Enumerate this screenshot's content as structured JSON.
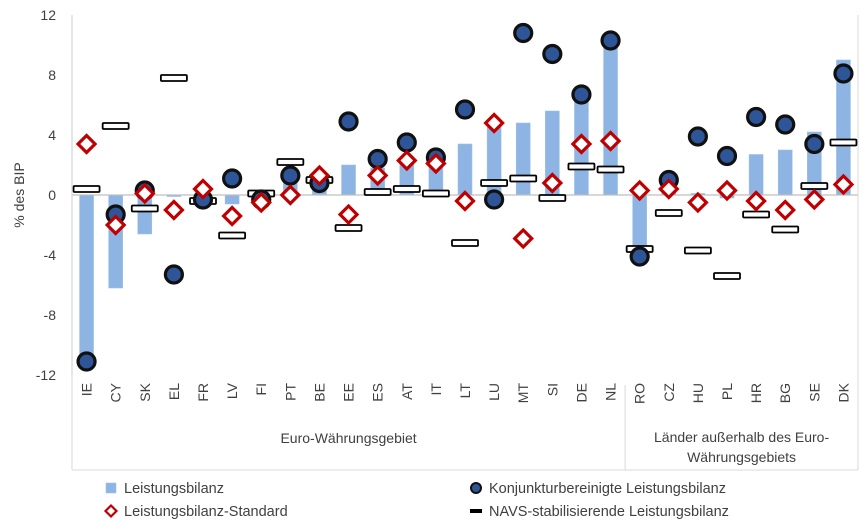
{
  "chart_data": {
    "type": "bar",
    "ylabel": "% des BIP",
    "ylim": [
      -12,
      12
    ],
    "yticks": [
      12,
      8,
      4,
      0,
      -4,
      -8,
      -12
    ],
    "categories": [
      "IE",
      "CY",
      "SK",
      "EL",
      "FR",
      "LV",
      "FI",
      "PT",
      "BE",
      "EE",
      "ES",
      "AT",
      "IT",
      "LT",
      "LU",
      "MT",
      "SI",
      "DE",
      "NL",
      "RO",
      "CZ",
      "HU",
      "PL",
      "HR",
      "BG",
      "SE",
      "DK"
    ],
    "groups": [
      {
        "label": "Euro-Währungsgebiet",
        "start": 0,
        "end": 18
      },
      {
        "label": "Länder außerhalb des Euro-Währungsgebiets",
        "label_lines": [
          "Länder außerhalb des Euro-",
          "Währungsgebiets"
        ],
        "start": 19,
        "end": 26
      }
    ],
    "series": [
      {
        "name": "Leistungsbilanz",
        "kind": "bar",
        "color": "#8db4e2",
        "values": [
          -11.0,
          -6.2,
          -2.6,
          -0.1,
          -0.3,
          -0.6,
          0.1,
          0.9,
          0.8,
          2.0,
          1.8,
          2.5,
          2.4,
          3.4,
          5.0,
          4.8,
          5.6,
          7.2,
          10.2,
          -4.5,
          0.2,
          0.1,
          -0.2,
          2.7,
          3.0,
          4.2,
          9.0
        ]
      },
      {
        "name": "Konjunkturbereinigte Leistungsbilanz",
        "kind": "circle",
        "color": "#1f3864",
        "values": [
          -11.1,
          -1.3,
          0.3,
          -5.3,
          -0.3,
          1.1,
          -0.3,
          1.3,
          0.8,
          4.9,
          2.4,
          3.5,
          2.5,
          5.7,
          -0.3,
          10.8,
          9.4,
          6.7,
          10.3,
          -4.1,
          1.0,
          3.9,
          2.6,
          5.2,
          4.7,
          3.4,
          8.1
        ]
      },
      {
        "name": "Leistungsbilanz-Standard",
        "kind": "diamond",
        "color": "#c00000",
        "values": [
          3.4,
          -2.0,
          0.1,
          -1.0,
          0.4,
          -1.4,
          -0.5,
          0.0,
          1.3,
          -1.3,
          1.3,
          2.3,
          2.1,
          -0.4,
          4.8,
          -2.9,
          0.8,
          3.4,
          3.6,
          0.3,
          0.4,
          -0.5,
          0.3,
          -0.4,
          -1.0,
          -0.3,
          0.7
        ]
      },
      {
        "name": "NAVS-stabilisierende Leistungsbilanz",
        "kind": "dash",
        "color": "#000000",
        "values": [
          0.4,
          4.6,
          -0.9,
          7.8,
          -0.4,
          -2.7,
          0.1,
          2.2,
          1.0,
          -2.2,
          0.2,
          0.4,
          0.1,
          -3.2,
          0.8,
          1.1,
          -0.2,
          1.9,
          1.7,
          -3.6,
          -1.2,
          -3.7,
          -5.4,
          -1.3,
          -2.3,
          0.6,
          3.5
        ]
      }
    ],
    "grid": false,
    "legend_position": "bottom"
  }
}
